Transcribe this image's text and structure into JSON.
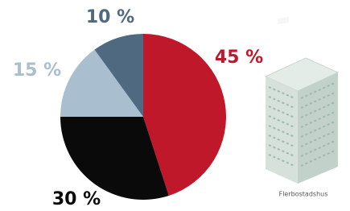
{
  "chart_data": {
    "type": "pie",
    "values": [
      45,
      30,
      15,
      10
    ],
    "value_labels": [
      "45 %",
      "30 %",
      "15 %",
      "10 %"
    ],
    "colors": [
      "#c0182b",
      "#0a0a0a",
      "#a9bfcf",
      "#4f6a80"
    ],
    "caption": "Flerbostadshus"
  }
}
